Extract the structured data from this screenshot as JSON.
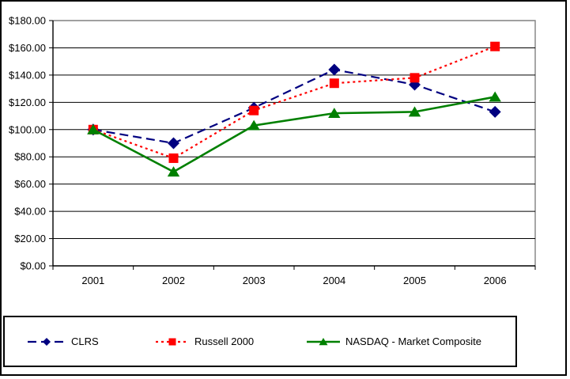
{
  "chart_data": {
    "type": "line",
    "title": "",
    "xlabel": "",
    "ylabel": "",
    "categories": [
      "2001",
      "2002",
      "2003",
      "2004",
      "2005",
      "2006"
    ],
    "series": [
      {
        "name": "CLRS",
        "color": "#000080",
        "line_style": "dashed",
        "marker": "diamond",
        "values": [
          100.0,
          90.0,
          116.0,
          144.0,
          133.0,
          113.0
        ]
      },
      {
        "name": "Russell 2000",
        "color": "#ff0000",
        "line_style": "dotted",
        "marker": "square",
        "values": [
          100.0,
          79.0,
          114.0,
          134.0,
          138.0,
          161.0
        ]
      },
      {
        "name": "NASDAQ - Market Composite",
        "color": "#008000",
        "line_style": "solid",
        "marker": "triangle",
        "values": [
          100.0,
          69.0,
          103.0,
          112.0,
          113.0,
          124.0
        ]
      }
    ],
    "ylim": [
      0,
      180
    ],
    "y_tick_step": 20,
    "y_tick_labels": [
      "$0.00",
      "$20.00",
      "$40.00",
      "$60.00",
      "$80.00",
      "$100.00",
      "$120.00",
      "$140.00",
      "$160.00",
      "$180.00"
    ],
    "grid": "horizontal",
    "gridline_color": "#000000",
    "plot_border_color": "#808080",
    "axis_color": "#000000",
    "text_color": "#000000",
    "legend_position": "bottom"
  }
}
